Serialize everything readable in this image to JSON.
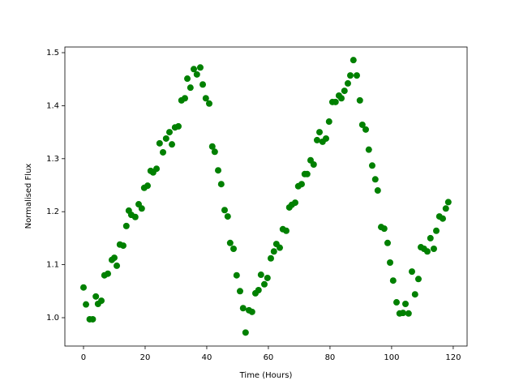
{
  "chart_data": {
    "type": "scatter",
    "xlabel": "Time (Hours)",
    "ylabel": "Normalised Flux",
    "xlim": [
      -6.05,
      124.5
    ],
    "ylim": [
      0.9465,
      1.5107
    ],
    "xticks": [
      0,
      20,
      40,
      60,
      80,
      100,
      120
    ],
    "yticks": [
      {
        "value": 1.0,
        "label": "1.0"
      },
      1.1,
      1.2,
      1.3,
      1.4,
      1.5
    ],
    "color": "#008000",
    "x": [
      0,
      0.8,
      2,
      3,
      4,
      4.7,
      5.8,
      6.8,
      7.9,
      9.2,
      10,
      10.8,
      11.8,
      12.9,
      13.9,
      14.7,
      15.5,
      16.8,
      17.9,
      18.9,
      19.7,
      20.8,
      21.8,
      22.6,
      23.7,
      24.7,
      25.8,
      26.8,
      27.9,
      28.7,
      29.7,
      30.8,
      31.8,
      32.9,
      33.7,
      34.7,
      35.8,
      36.8,
      37.9,
      38.7,
      39.7,
      40.8,
      41.8,
      42.6,
      43.7,
      44.7,
      45.8,
      46.8,
      47.6,
      48.7,
      49.7,
      50.8,
      51.8,
      52.6,
      53.7,
      54.7,
      55.8,
      56.8,
      57.6,
      58.7,
      59.7,
      60.8,
      61.8,
      62.6,
      63.7,
      64.7,
      65.8,
      66.8,
      67.6,
      68.7,
      69.7,
      70.8,
      71.8,
      72.6,
      73.7,
      74.7,
      75.8,
      76.6,
      77.6,
      78.7,
      79.7,
      80.8,
      81.8,
      82.9,
      83.7,
      84.7,
      85.8,
      86.6,
      87.6,
      88.7,
      89.7,
      90.5,
      91.6,
      92.6,
      93.7,
      94.7,
      95.5,
      96.6,
      97.6,
      98.7,
      99.5,
      100.5,
      101.6,
      102.6,
      103.7,
      104.5,
      105.5,
      106.6,
      107.6,
      108.7,
      109.5,
      110.5,
      111.6,
      112.6,
      113.7,
      114.5,
      115.5,
      116.6,
      117.6,
      118.4
    ],
    "values": [
      1.057,
      1.025,
      0.997,
      0.997,
      1.04,
      1.026,
      1.032,
      1.08,
      1.083,
      1.109,
      1.113,
      1.098,
      1.138,
      1.136,
      1.173,
      1.202,
      1.194,
      1.19,
      1.214,
      1.206,
      1.245,
      1.249,
      1.277,
      1.274,
      1.281,
      1.329,
      1.312,
      1.338,
      1.35,
      1.327,
      1.359,
      1.361,
      1.41,
      1.414,
      1.451,
      1.434,
      1.469,
      1.459,
      1.472,
      1.44,
      1.414,
      1.404,
      1.323,
      1.313,
      1.278,
      1.252,
      1.203,
      1.191,
      1.141,
      1.13,
      1.08,
      1.05,
      1.018,
      0.972,
      1.014,
      1.011,
      1.046,
      1.052,
      1.081,
      1.063,
      1.075,
      1.112,
      1.125,
      1.139,
      1.132,
      1.167,
      1.164,
      1.208,
      1.213,
      1.217,
      1.248,
      1.252,
      1.271,
      1.271,
      1.297,
      1.289,
      1.335,
      1.35,
      1.332,
      1.338,
      1.37,
      1.407,
      1.407,
      1.419,
      1.414,
      1.428,
      1.442,
      1.457,
      1.486,
      1.457,
      1.41,
      1.364,
      1.355,
      1.317,
      1.287,
      1.261,
      1.24,
      1.171,
      1.168,
      1.141,
      1.104,
      1.07,
      1.029,
      1.008,
      1.009,
      1.026,
      1.008,
      1.087,
      1.044,
      1.073,
      1.133,
      1.13,
      1.125,
      1.15,
      1.13,
      1.164,
      1.191,
      1.187,
      1.206,
      1.218
    ]
  }
}
